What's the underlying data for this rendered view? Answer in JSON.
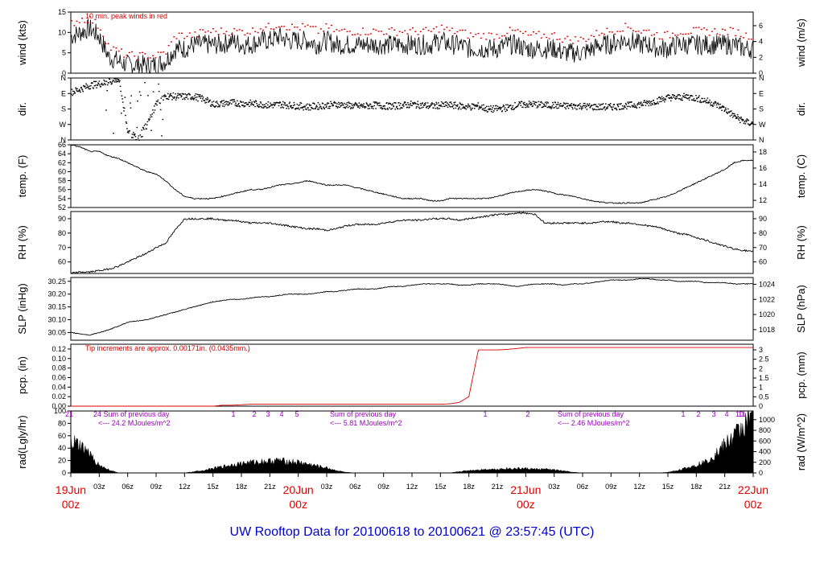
{
  "footer_title": "UW Rooftop Data for 20100618  to  20100621 @ 23:57:45  (UTC)",
  "colors": {
    "trace": "#000000",
    "peak": "#e00000",
    "precip": "#dd0000",
    "rad_text": "#9900bb",
    "title": "#0000cc",
    "date": "#e00000"
  },
  "time_axis": {
    "start": "2010-06-19 00z",
    "end": "2010-06-22 00z",
    "hour_labels": [
      "03z",
      "06z",
      "09z",
      "12z",
      "15z",
      "18z",
      "21z",
      "03z",
      "06z",
      "09z",
      "12z",
      "15z",
      "18z",
      "21z",
      "03z",
      "06z",
      "09z",
      "12z",
      "15z",
      "18z",
      "21z"
    ],
    "date_labels": [
      {
        "date": "19Jun",
        "hour": "00z"
      },
      {
        "date": "20Jun",
        "hour": "00z"
      },
      {
        "date": "21Jun",
        "hour": "00z"
      },
      {
        "date": "22Jun",
        "hour": "00z"
      }
    ]
  },
  "chart_data": [
    {
      "type": "line",
      "id": "wind",
      "ylabel_left": "wind (kts)",
      "ylabel_right": "wind (m/s)",
      "ylim": [
        0,
        15
      ],
      "yticks_left": [
        0,
        5,
        10,
        15
      ],
      "ylim_right": [
        0,
        7.72
      ],
      "yticks_right": [
        0,
        2,
        4,
        6,
        8
      ],
      "annotation": "10 min. peak winds in red",
      "series": [
        {
          "values_by_hour": [
            9,
            10,
            11,
            9,
            4,
            3,
            2,
            2,
            2,
            2,
            3,
            6,
            6,
            7,
            7,
            7,
            7,
            8,
            7,
            7,
            8,
            8,
            9,
            8,
            8,
            8,
            7,
            8,
            7,
            7,
            7,
            7,
            7,
            7,
            7,
            7,
            7,
            7,
            7,
            8,
            7,
            7,
            6,
            6,
            6,
            6,
            7,
            7,
            6,
            6,
            6,
            6,
            5,
            5,
            5,
            6,
            7,
            7,
            8,
            8,
            7,
            7,
            6,
            6,
            7,
            7,
            7,
            7,
            7,
            7,
            7,
            6,
            6
          ]
        },
        {
          "values_by_hour": [
            12,
            13,
            13,
            11,
            6,
            5,
            4,
            4,
            4,
            4,
            5,
            9,
            9,
            9,
            10,
            10,
            10,
            10,
            10,
            10,
            11,
            11,
            12,
            11,
            11,
            11,
            10,
            11,
            10,
            10,
            10,
            10,
            10,
            10,
            10,
            10,
            10,
            10,
            10,
            11,
            10,
            10,
            9,
            9,
            9,
            9,
            10,
            10,
            9,
            9,
            9,
            9,
            8,
            8,
            8,
            9,
            10,
            10,
            11,
            11,
            10,
            10,
            9,
            9,
            10,
            10,
            10,
            10,
            10,
            10,
            10,
            9,
            9
          ]
        }
      ]
    },
    {
      "type": "scatter",
      "id": "dir",
      "ylabel_left": "dir.",
      "ylabel_right": "dir.",
      "ylim": [
        0,
        360
      ],
      "ytick_labels": [
        "N",
        "W",
        "S",
        "E",
        "N"
      ],
      "series": [
        {
          "values_by_hour": [
            280,
            300,
            320,
            330,
            340,
            360,
            40,
            20,
            90,
            220,
            260,
            255,
            255,
            255,
            240,
            210,
            215,
            220,
            215,
            215,
            210,
            205,
            210,
            205,
            200,
            195,
            200,
            205,
            210,
            205,
            200,
            200,
            205,
            200,
            200,
            205,
            210,
            205,
            200,
            205,
            205,
            200,
            195,
            200,
            180,
            185,
            190,
            205,
            210,
            210,
            205,
            205,
            200,
            200,
            200,
            195,
            195,
            195,
            200,
            205,
            210,
            220,
            235,
            250,
            250,
            255,
            245,
            230,
            210,
            180,
            140,
            110,
            95
          ]
        }
      ]
    },
    {
      "type": "line",
      "id": "temp",
      "ylabel_left": "temp. (F)",
      "ylabel_right": "temp. (C)",
      "ylim": [
        52,
        66
      ],
      "yticks_left": [
        52,
        54,
        56,
        58,
        60,
        62,
        64,
        66
      ],
      "ylim_right": [
        11.11,
        18.89
      ],
      "yticks_right": [
        12,
        14,
        16,
        18
      ],
      "series": [
        {
          "values_by_hour": [
            66,
            65.5,
            64.5,
            64.5,
            63.5,
            63,
            62,
            61,
            60,
            59.5,
            58,
            56,
            54.5,
            54,
            54,
            54,
            54.5,
            55,
            55.5,
            56,
            56,
            56.5,
            57,
            57.2,
            57.5,
            58,
            57.5,
            57,
            57,
            57,
            56.5,
            56,
            55.5,
            55,
            54.5,
            54,
            54,
            54,
            53.5,
            53.5,
            54,
            54,
            54,
            54,
            54,
            54.5,
            55,
            55.5,
            55.8,
            56,
            55.7,
            55.2,
            54.8,
            54.5,
            54,
            53.5,
            53.2,
            53,
            53,
            53,
            53,
            53.5,
            54,
            54.5,
            55.5,
            56.5,
            57.5,
            58.5,
            59.5,
            60.5,
            62,
            62.5,
            62.5
          ]
        }
      ]
    },
    {
      "type": "line",
      "id": "rh",
      "ylabel_left": "RH (%)",
      "ylabel_right": "RH (%)",
      "ylim": [
        52,
        95
      ],
      "yticks_left": [
        60,
        70,
        80,
        90
      ],
      "ylim_right": [
        52,
        95
      ],
      "yticks_right": [
        50,
        60,
        70,
        80,
        90
      ],
      "series": [
        {
          "values_by_hour": [
            52,
            53,
            53,
            54,
            55,
            57,
            60,
            63,
            66,
            70,
            73,
            82,
            90,
            90,
            90,
            90,
            89,
            89,
            88,
            87,
            87,
            87,
            86,
            85,
            84,
            83,
            83,
            82,
            83,
            85,
            86,
            86,
            86,
            87,
            88,
            89,
            89,
            89,
            90,
            90,
            90,
            89,
            90,
            91,
            92,
            93,
            93,
            94,
            94,
            93,
            87,
            87,
            87,
            87,
            87,
            87,
            88,
            88,
            87,
            87,
            86,
            85,
            84,
            82,
            80,
            79,
            77,
            75,
            73,
            71,
            69,
            68,
            67
          ]
        }
      ]
    },
    {
      "type": "line",
      "id": "slp",
      "ylabel_left": "SLP (inHg)",
      "ylabel_right": "SLP (hPa)",
      "ylim": [
        30.02,
        30.265
      ],
      "yticks_left": [
        30.05,
        30.1,
        30.15,
        30.2,
        30.25
      ],
      "ylim_right": [
        1016.6,
        1024.9
      ],
      "yticks_right": [
        1018,
        1020,
        1022,
        1024
      ],
      "series": [
        {
          "values_by_hour": [
            30.05,
            30.045,
            30.04,
            30.05,
            30.06,
            30.075,
            30.09,
            30.095,
            30.1,
            30.11,
            30.12,
            30.13,
            30.14,
            30.15,
            30.16,
            30.17,
            30.175,
            30.18,
            30.18,
            30.185,
            30.19,
            30.19,
            30.195,
            30.2,
            30.2,
            30.2,
            30.205,
            30.21,
            30.21,
            30.215,
            30.22,
            30.22,
            30.22,
            30.225,
            30.23,
            30.23,
            30.235,
            30.24,
            30.24,
            30.24,
            30.24,
            30.235,
            30.235,
            30.24,
            30.24,
            30.24,
            30.235,
            30.23,
            30.235,
            30.24,
            30.24,
            30.24,
            30.235,
            30.24,
            30.24,
            30.245,
            30.25,
            30.255,
            30.255,
            30.255,
            30.26,
            30.26,
            30.255,
            30.255,
            30.25,
            30.25,
            30.25,
            30.245,
            30.245,
            30.245,
            30.24,
            30.24,
            30.24
          ]
        }
      ]
    },
    {
      "type": "line",
      "id": "pcp",
      "ylabel_left": "pcp. (in)",
      "ylabel_right": "pcp. (mm)",
      "ylim": [
        0,
        0.13
      ],
      "yticks_left": [
        0.0,
        0.02,
        0.04,
        0.06,
        0.08,
        0.1,
        0.12
      ],
      "ylim_right": [
        0,
        3.3
      ],
      "yticks_right": [
        0,
        0.5,
        1,
        1.5,
        2,
        2.5,
        3
      ],
      "annotation": "Tip increments are approx. 0.00171in. (0.0435mm.)",
      "series": [
        {
          "values_by_hour": [
            0,
            0,
            0,
            0,
            0,
            0,
            0,
            0,
            0,
            0,
            0,
            0,
            0,
            0,
            0,
            0,
            0.002,
            0.002,
            0.003,
            0.004,
            0.004,
            0.004,
            0.004,
            0.004,
            0.004,
            0.004,
            0.004,
            0.004,
            0.004,
            0.004,
            0.004,
            0.004,
            0.004,
            0.004,
            0.004,
            0.004,
            0.004,
            0.004,
            0.004,
            0.004,
            0.005,
            0.008,
            0.02,
            0.118,
            0.118,
            0.118,
            0.119,
            0.121,
            0.123,
            0.123,
            0.123,
            0.123,
            0.123,
            0.123,
            0.123,
            0.123,
            0.123,
            0.123,
            0.123,
            0.123,
            0.123,
            0.123,
            0.123,
            0.123,
            0.123,
            0.123,
            0.123,
            0.123,
            0.123,
            0.123,
            0.123,
            0.123,
            0.123
          ]
        }
      ]
    },
    {
      "type": "area",
      "id": "rad",
      "ylabel_left": "rad(Lgly/hr)",
      "ylabel_right": "rad (W/m^2)",
      "ylim": [
        0,
        100
      ],
      "yticks_left": [
        0,
        20,
        40,
        60,
        80,
        100
      ],
      "ylim_right": [
        0,
        1163
      ],
      "yticks_right": [
        0,
        200,
        400,
        600,
        800,
        1000,
        1200
      ],
      "ytick_labels_right": [
        "0",
        "200",
        "400",
        "600",
        "800",
        "1000",
        "1200"
      ],
      "series": [
        {
          "values_by_hour": [
            50,
            42,
            30,
            12,
            5,
            0,
            0,
            0,
            0,
            0,
            0,
            0,
            0,
            2,
            4,
            7,
            10,
            13,
            15,
            17,
            18,
            19,
            20,
            18,
            17,
            14,
            11,
            8,
            4,
            1,
            0,
            0,
            0,
            0,
            0,
            0,
            0,
            0,
            0,
            0,
            0,
            2,
            4,
            5,
            6,
            6,
            7,
            7,
            7,
            6,
            6,
            5,
            3,
            1,
            0,
            0,
            0,
            0,
            0,
            0,
            0,
            0,
            0,
            1,
            4,
            8,
            13,
            18,
            30,
            45,
            60,
            75,
            95
          ]
        }
      ],
      "day_notes": [
        {
          "sum": "24 Sum of previous day",
          "total": "<--- 24.2 MJoules/m^2"
        },
        {
          "sum": "Sum of previous day",
          "total": "<--- 5.81 MJoules/m^2"
        },
        {
          "sum": "Sum of previous day",
          "total": "<--- 2.46 MJoules/m^2"
        }
      ],
      "hour_marks": [
        "21",
        "1",
        "2",
        "3",
        "4",
        "5",
        "1",
        "2",
        "1",
        "2",
        "3",
        "4",
        "10",
        "11"
      ]
    }
  ]
}
